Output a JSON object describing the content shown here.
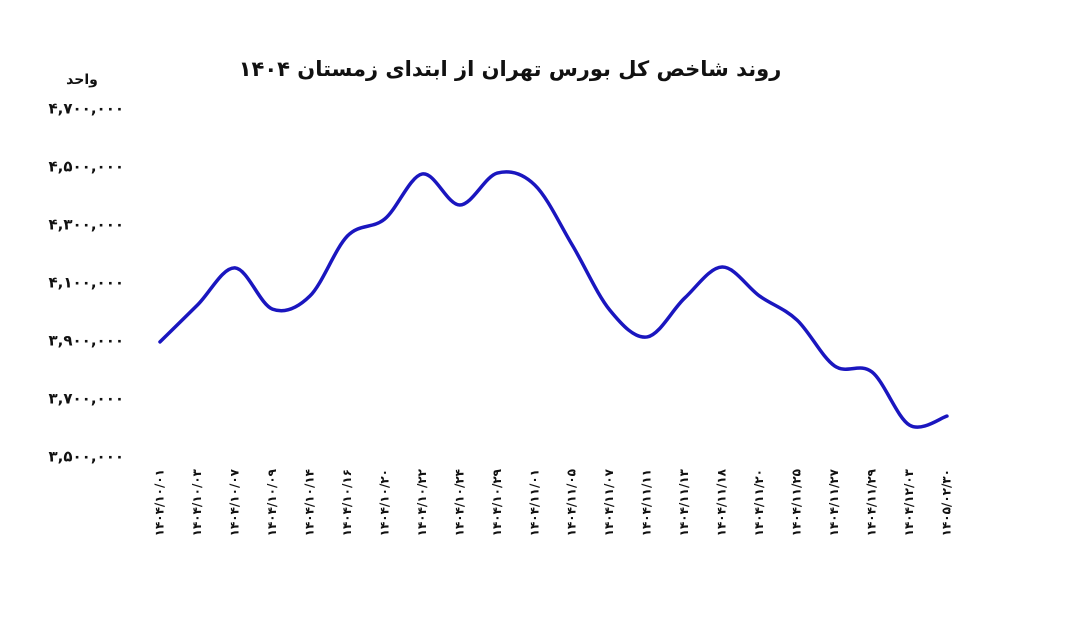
{
  "chart_data": {
    "type": "line",
    "title": "روند شاخص کل بورس تهران از ابتدای زمستان ۱۴۰۴",
    "y_label": "واحد",
    "color": "#1a16bf",
    "categories": [
      "۱۴۰۴/۱۰/۰۱",
      "۱۴۰۴/۱۰/۰۳",
      "۱۴۰۴/۱۰/۰۷",
      "۱۴۰۴/۱۰/۰۹",
      "۱۴۰۴/۱۰/۱۴",
      "۱۴۰۴/۱۰/۱۶",
      "۱۴۰۴/۱۰/۲۰",
      "۱۴۰۴/۱۰/۲۲",
      "۱۴۰۴/۱۰/۲۴",
      "۱۴۰۴/۱۰/۲۹",
      "۱۴۰۴/۱۱/۰۱",
      "۱۴۰۴/۱۱/۰۵",
      "۱۴۰۴/۱۱/۰۷",
      "۱۴۰۴/۱۱/۱۱",
      "۱۴۰۴/۱۱/۱۳",
      "۱۴۰۴/۱۱/۱۸",
      "۱۴۰۴/۱۱/۲۰",
      "۱۴۰۴/۱۱/۲۵",
      "۱۴۰۴/۱۱/۲۷",
      "۱۴۰۴/۱۱/۲۹",
      "۱۴۰۴/۱۲/۰۳",
      "۱۴۰۵/۰۲/۳۰"
    ],
    "values": [
      3897000,
      4024000,
      4152000,
      4010000,
      4055000,
      4262000,
      4321000,
      4476000,
      4369000,
      4479000,
      4438000,
      4231000,
      4007000,
      3914000,
      4048000,
      4155000,
      4055000,
      3972000,
      3814000,
      3793000,
      3610000,
      3641000
    ],
    "ylim": [
      3500000,
      4700000
    ],
    "yticks": [
      {
        "value": 3500000,
        "label": "۳,۵۰۰,۰۰۰"
      },
      {
        "value": 3700000,
        "label": "۳,۷۰۰,۰۰۰"
      },
      {
        "value": 3900000,
        "label": "۳,۹۰۰,۰۰۰"
      },
      {
        "value": 4100000,
        "label": "۴,۱۰۰,۰۰۰"
      },
      {
        "value": 4300000,
        "label": "۴,۳۰۰,۰۰۰"
      },
      {
        "value": 4500000,
        "label": "۴,۵۰۰,۰۰۰"
      },
      {
        "value": 4700000,
        "label": "۴,۷۰۰,۰۰۰"
      }
    ],
    "grid": false
  }
}
